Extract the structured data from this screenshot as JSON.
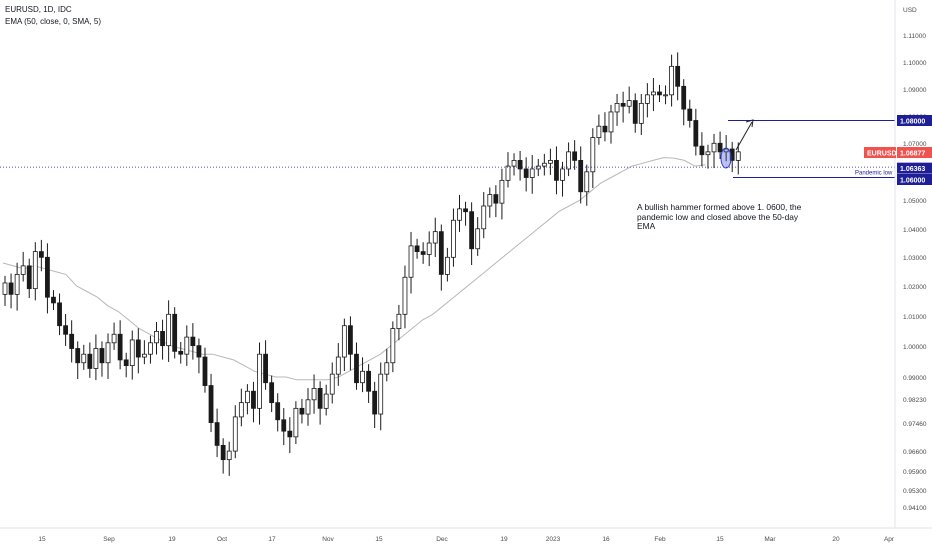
{
  "header": {
    "symbol_line": "EURUSD, 1D, IDC",
    "indicator_line": "EMA (50, close, 0, SMA, 5)"
  },
  "annotation": {
    "text": "A bullish hammer formed above 1. 0600, the pandemic low and closed above the 50-day EMA"
  },
  "colors": {
    "up_body": "#ffffff",
    "down_body": "#1a1a1a",
    "wick": "#1a1a1a",
    "ema": "#b8b8b8",
    "level": "#1e1e96",
    "symbol_badge": "#ef5350",
    "dotted_line": "#1e1e96"
  },
  "chart_data": {
    "type": "candlestick",
    "currency_label": "USD",
    "y_ticks": [
      "1.11000",
      "1.10000",
      "1.09000",
      "1.08000",
      "1.07000",
      "1.06000",
      "1.05000",
      "1.04000",
      "1.03000",
      "1.02000",
      "1.01000",
      "1.00000",
      "0.99000",
      "0.98230",
      "0.97460",
      "0.96600",
      "0.95900",
      "0.95300",
      "0.94100"
    ],
    "x_ticks": [
      "15",
      "Sep",
      "19",
      "Oct",
      "17",
      "Nov",
      "15",
      "Dec",
      "19",
      "2023",
      "16",
      "Feb",
      "15",
      "Mar",
      "20",
      "Apr"
    ],
    "price_labels": [
      {
        "label": "1.08000",
        "value": 1.08
      },
      {
        "label": "EURUSD",
        "value": 1.06877
      },
      {
        "label": "1.06877",
        "value": 1.06877
      },
      {
        "label": "1.06363",
        "value": 1.06363
      },
      {
        "label": "1.06000",
        "value": 1.06
      }
    ],
    "levels": [
      {
        "label": "Pandemic low",
        "value": 1.06
      },
      {
        "label": "",
        "value": 1.08
      }
    ],
    "dotted_level": 1.06363,
    "ema_period": 50,
    "closes": [
      1.023,
      1.019,
      1.026,
      1.029,
      1.021,
      1.034,
      1.032,
      1.018,
      1.016,
      1.008,
      1.005,
      1.0,
      0.995,
      0.998,
      0.993,
      1.0,
      0.995,
      1.002,
      1.005,
      0.996,
      0.994,
      1.003,
      0.997,
      0.998,
      1.002,
      1.006,
      1.001,
      1.012,
      0.999,
      0.998,
      1.004,
      1.001,
      0.997,
      0.987,
      0.974,
      0.966,
      0.961,
      0.964,
      0.976,
      0.981,
      0.985,
      0.979,
      0.998,
      0.988,
      0.981,
      0.975,
      0.971,
      0.969,
      0.979,
      0.977,
      0.982,
      0.986,
      0.979,
      0.984,
      0.991,
      0.997,
      1.008,
      0.998,
      0.988,
      0.992,
      0.985,
      0.977,
      0.991,
      0.995,
      1.007,
      1.012,
      1.025,
      1.036,
      1.034,
      1.033,
      1.037,
      1.041,
      1.026,
      1.032,
      1.045,
      1.049,
      1.048,
      1.035,
      1.042,
      1.05,
      1.054,
      1.051,
      1.059,
      1.064,
      1.066,
      1.063,
      1.06,
      1.063,
      1.064,
      1.065,
      1.066,
      1.059,
      1.063,
      1.069,
      1.066,
      1.055,
      1.062,
      1.074,
      1.078,
      1.076,
      1.083,
      1.086,
      1.085,
      1.087,
      1.079,
      1.086,
      1.089,
      1.09,
      1.089,
      1.089,
      1.099,
      1.092,
      1.084,
      1.08,
      1.071,
      1.068,
      1.069,
      1.072,
      1.069,
      1.07,
      1.066,
      1.069
    ],
    "ema": [
      1.03,
      1.029,
      1.028,
      1.029,
      1.028,
      1.027,
      1.026,
      1.022,
      1.02,
      1.018,
      1.015,
      1.013,
      1.01,
      1.007,
      1.005,
      1.003,
      1.001,
      1.0,
      0.999,
      0.998,
      0.998,
      0.997,
      0.996,
      0.994,
      0.992,
      0.991,
      0.99,
      0.99,
      0.989,
      0.989,
      0.989,
      0.989,
      0.99,
      0.992,
      0.994,
      0.996,
      0.998,
      1.001,
      1.004,
      1.007,
      1.01,
      1.012,
      1.015,
      1.018,
      1.021,
      1.024,
      1.027,
      1.03,
      1.033,
      1.036,
      1.039,
      1.042,
      1.045,
      1.048,
      1.05,
      1.052,
      1.055,
      1.058,
      1.06,
      1.062,
      1.064,
      1.065,
      1.066,
      1.067,
      1.0668,
      1.066,
      1.064,
      1.0645
    ]
  }
}
